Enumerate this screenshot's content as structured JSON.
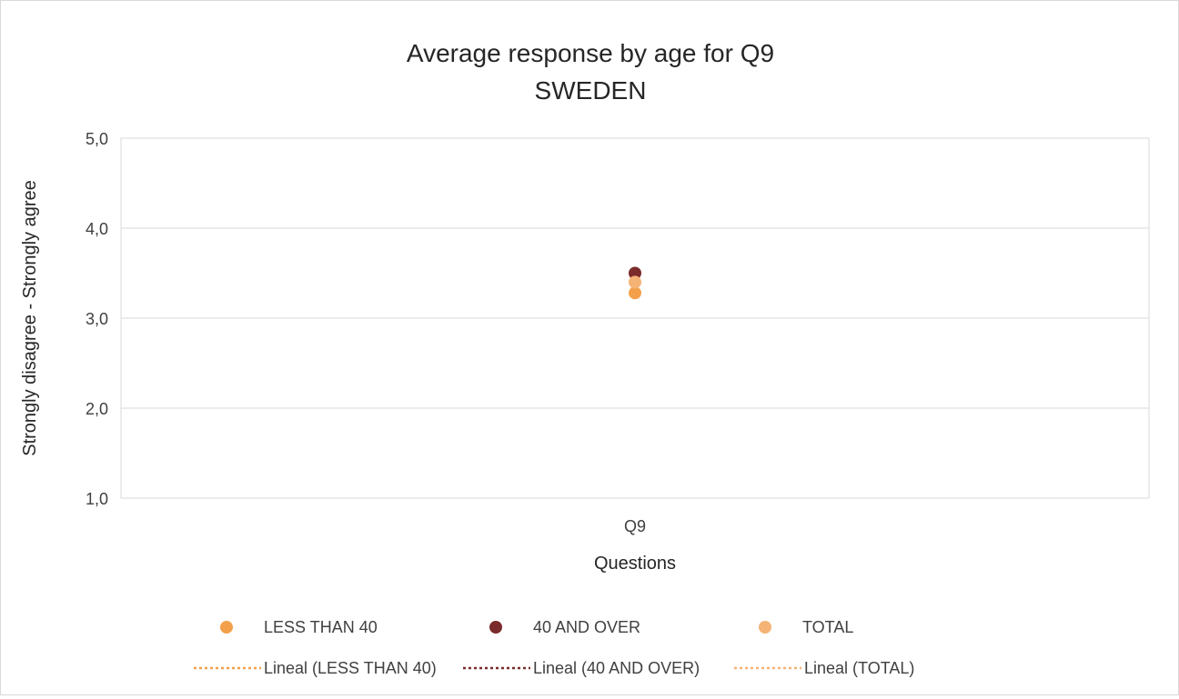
{
  "chart_data": {
    "type": "scatter",
    "title": "Average response by age for Q9",
    "subtitle": "SWEDEN",
    "xlabel": "Questions",
    "ylabel": "Strongly disagree - Strongly agree",
    "categories": [
      "Q9"
    ],
    "y_ticks": [
      "1,0",
      "2,0",
      "3,0",
      "4,0",
      "5,0"
    ],
    "ylim": [
      1.0,
      5.0
    ],
    "grid": true,
    "legend_position": "bottom",
    "series": [
      {
        "name": "LESS THAN 40",
        "values": [
          3.28
        ],
        "color": "#f4a04b"
      },
      {
        "name": "40 AND OVER",
        "values": [
          3.5
        ],
        "color": "#7b2b2b"
      },
      {
        "name": "TOTAL",
        "values": [
          3.4
        ],
        "color": "#f5b376"
      }
    ],
    "trendlines": [
      {
        "name": "Lineal (LESS THAN 40)",
        "color": "#f4a04b"
      },
      {
        "name": "Lineal (40 AND OVER)",
        "color": "#7b2b2b"
      },
      {
        "name": "Lineal (TOTAL)",
        "color": "#f5b376"
      }
    ]
  }
}
